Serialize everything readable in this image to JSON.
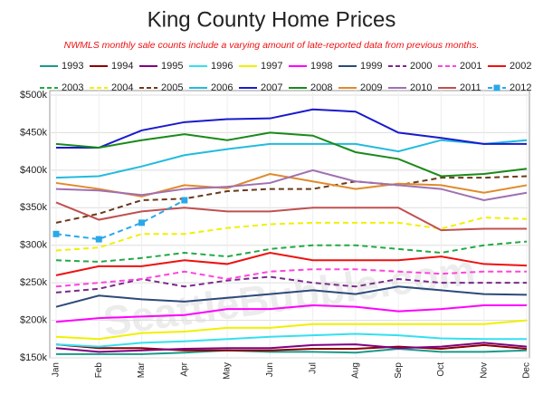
{
  "chart_data": {
    "type": "line",
    "title": "King County Home Prices",
    "subtitle": "NWMLS monthly sale counts include a varying amount of late-reported  data from previous months.",
    "watermark": "SeattleBubble.com",
    "categories": [
      "Jan",
      "Feb",
      "Mar",
      "Apr",
      "May",
      "Jun",
      "Jul",
      "Aug",
      "Sep",
      "Oct",
      "Nov",
      "Dec"
    ],
    "ylim": [
      150,
      500
    ],
    "yticks": [
      {
        "value": 150,
        "label": "$150k"
      },
      {
        "value": 200,
        "label": "$200k"
      },
      {
        "value": 250,
        "label": "$250k"
      },
      {
        "value": 300,
        "label": "$300k"
      },
      {
        "value": 350,
        "label": "$350k"
      },
      {
        "value": 400,
        "label": "$400k"
      },
      {
        "value": 450,
        "label": "$450k"
      },
      {
        "value": 500,
        "label": "$500k"
      }
    ],
    "grid": true,
    "series": [
      {
        "name": "1993",
        "color": "#1a9a8a",
        "dashed": false,
        "values": [
          155,
          155,
          155,
          157,
          160,
          158,
          158,
          157,
          162,
          158,
          158,
          160
        ]
      },
      {
        "name": "1994",
        "color": "#8b0000",
        "dashed": false,
        "values": [
          168,
          163,
          163,
          160,
          160,
          160,
          162,
          162,
          165,
          162,
          167,
          162
        ]
      },
      {
        "name": "1995",
        "color": "#800080",
        "dashed": false,
        "values": [
          163,
          158,
          160,
          162,
          163,
          163,
          167,
          168,
          163,
          165,
          170,
          165
        ]
      },
      {
        "name": "1996",
        "color": "#33e0f0",
        "dashed": false,
        "values": [
          168,
          165,
          170,
          172,
          175,
          178,
          180,
          182,
          180,
          176,
          175,
          175
        ]
      },
      {
        "name": "1997",
        "color": "#f0f000",
        "dashed": false,
        "values": [
          178,
          175,
          183,
          185,
          190,
          190,
          195,
          195,
          195,
          195,
          195,
          200
        ]
      },
      {
        "name": "1998",
        "color": "#ff00ff",
        "dashed": false,
        "values": [
          198,
          203,
          205,
          207,
          215,
          215,
          220,
          218,
          212,
          215,
          220,
          220
        ]
      },
      {
        "name": "1999",
        "color": "#2c4a7a",
        "dashed": false,
        "values": [
          218,
          233,
          228,
          225,
          230,
          235,
          240,
          235,
          245,
          240,
          235,
          234
        ]
      },
      {
        "name": "2000",
        "color": "#7a2a8a",
        "dashed": true,
        "values": [
          237,
          242,
          255,
          245,
          253,
          258,
          250,
          245,
          255,
          250,
          250,
          250
        ]
      },
      {
        "name": "2001",
        "color": "#ff44dd",
        "dashed": true,
        "values": [
          245,
          250,
          255,
          265,
          255,
          265,
          268,
          268,
          265,
          262,
          265,
          265
        ]
      },
      {
        "name": "2002",
        "color": "#ee1111",
        "dashed": false,
        "values": [
          260,
          272,
          272,
          280,
          275,
          290,
          280,
          280,
          280,
          285,
          275,
          273
        ]
      },
      {
        "name": "2003",
        "color": "#22aa44",
        "dashed": true,
        "values": [
          280,
          278,
          283,
          290,
          285,
          295,
          300,
          300,
          295,
          290,
          300,
          305
        ]
      },
      {
        "name": "2004",
        "color": "#f0f000",
        "dashed": true,
        "values": [
          293,
          297,
          315,
          315,
          323,
          328,
          330,
          330,
          330,
          322,
          337,
          335
        ]
      },
      {
        "name": "2005",
        "color": "#6b3a1a",
        "dashed": true,
        "values": [
          330,
          342,
          360,
          362,
          372,
          375,
          375,
          385,
          380,
          390,
          390,
          392
        ]
      },
      {
        "name": "2006",
        "color": "#22bbdd",
        "dashed": false,
        "values": [
          390,
          392,
          405,
          420,
          428,
          435,
          435,
          435,
          425,
          440,
          435,
          440
        ]
      },
      {
        "name": "2007",
        "color": "#1a1acc",
        "dashed": false,
        "values": [
          430,
          430,
          453,
          464,
          468,
          469,
          481,
          478,
          450,
          443,
          435,
          435
        ]
      },
      {
        "name": "2008",
        "color": "#1a8a1a",
        "dashed": false,
        "values": [
          435,
          430,
          440,
          448,
          440,
          450,
          446,
          424,
          415,
          392,
          395,
          402
        ]
      },
      {
        "name": "2009",
        "color": "#e08a2a",
        "dashed": false,
        "values": [
          383,
          375,
          365,
          380,
          376,
          395,
          385,
          375,
          382,
          380,
          370,
          380
        ]
      },
      {
        "name": "2010",
        "color": "#a070b0",
        "dashed": false,
        "values": [
          375,
          373,
          367,
          375,
          378,
          383,
          400,
          385,
          380,
          375,
          360,
          370
        ]
      },
      {
        "name": "2011",
        "color": "#c05050",
        "dashed": false,
        "values": [
          357,
          334,
          345,
          350,
          345,
          345,
          350,
          350,
          350,
          320,
          322,
          322
        ]
      },
      {
        "name": "2012",
        "color": "#2aa8e8",
        "dashed": true,
        "marker": "square",
        "values": [
          315,
          308,
          330,
          360,
          null,
          null,
          null,
          null,
          null,
          null,
          null,
          null
        ]
      }
    ]
  }
}
